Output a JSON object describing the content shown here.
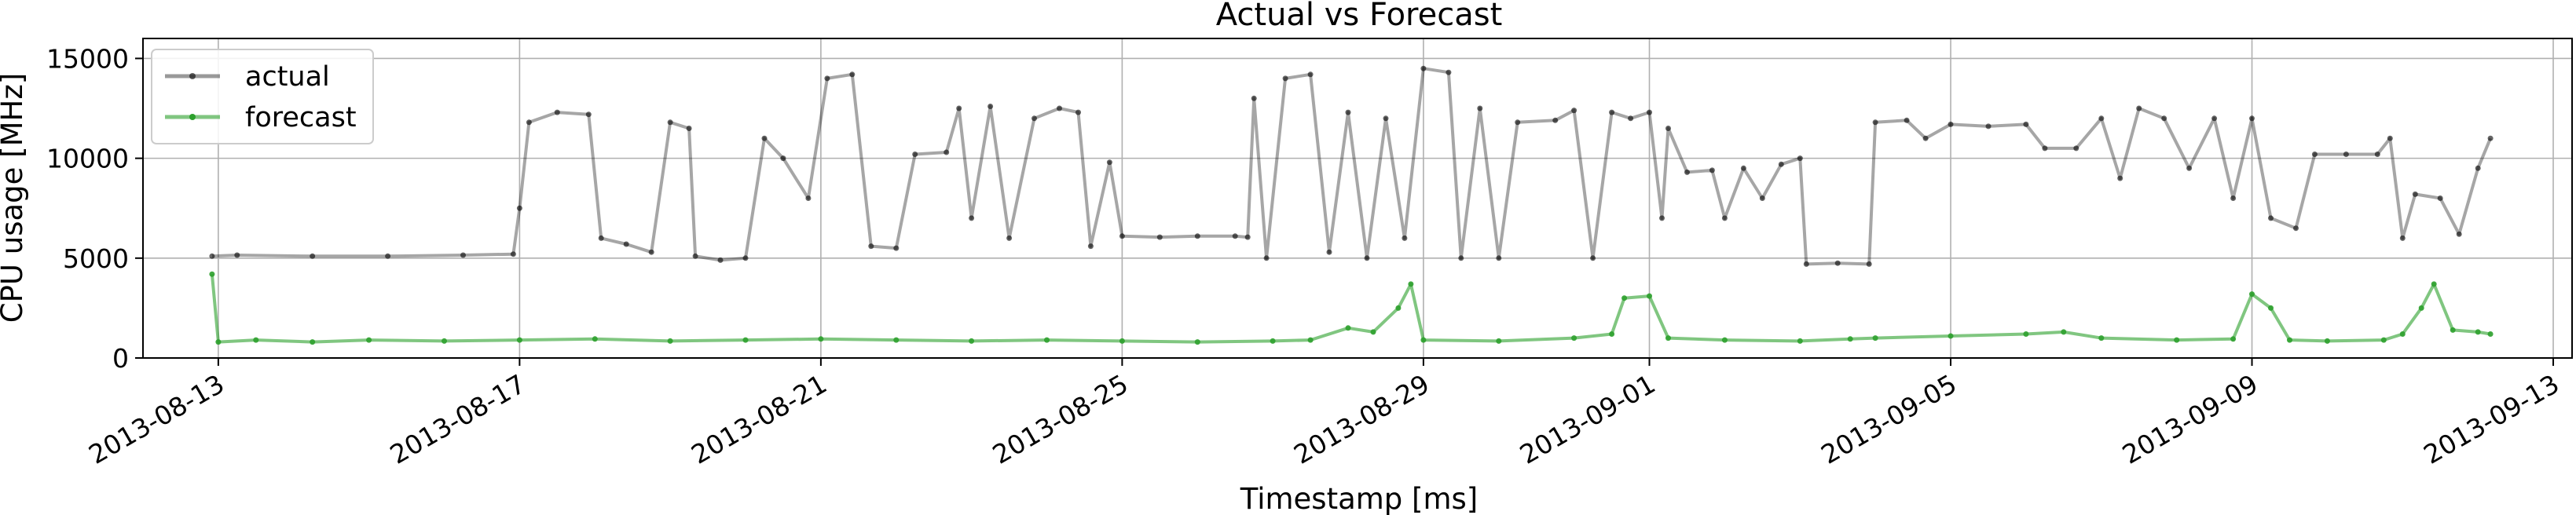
{
  "chart_data": {
    "type": "line",
    "title": "Actual vs Forecast",
    "xlabel": "Timestamp [ms]",
    "ylabel": "CPU usage [MHz]",
    "ylim": [
      0,
      16000
    ],
    "xlim": [
      "2013-08-12T00:00",
      "2013-09-13T06:00"
    ],
    "grid": true,
    "legend_position": "top-left",
    "y_ticks": [
      0,
      5000,
      10000,
      15000
    ],
    "y_tick_labels": [
      "0",
      "5000",
      "10000",
      "15000"
    ],
    "x_ticks": [
      "2013-08-13",
      "2013-08-17",
      "2013-08-21",
      "2013-08-25",
      "2013-08-29",
      "2013-09-01",
      "2013-09-05",
      "2013-09-09",
      "2013-09-13"
    ],
    "x_tick_labels": [
      "2013-08-13",
      "2013-08-17",
      "2013-08-21",
      "2013-08-25",
      "2013-08-29",
      "2013-09-01",
      "2013-09-05",
      "2013-09-09",
      "2013-09-13"
    ],
    "series": [
      {
        "name": "actual",
        "color": "#000000",
        "points": [
          [
            "2013-08-12T22:00",
            5100
          ],
          [
            "2013-08-13T06:00",
            5150
          ],
          [
            "2013-08-14T06:00",
            5100
          ],
          [
            "2013-08-15T06:00",
            5100
          ],
          [
            "2013-08-16T06:00",
            5150
          ],
          [
            "2013-08-16T22:00",
            5200
          ],
          [
            "2013-08-17T00:00",
            7500
          ],
          [
            "2013-08-17T03:00",
            11800
          ],
          [
            "2013-08-17T12:00",
            12300
          ],
          [
            "2013-08-17T22:00",
            12200
          ],
          [
            "2013-08-18T02:00",
            6000
          ],
          [
            "2013-08-18T10:00",
            5700
          ],
          [
            "2013-08-18T18:00",
            5300
          ],
          [
            "2013-08-19T00:00",
            11800
          ],
          [
            "2013-08-19T06:00",
            11500
          ],
          [
            "2013-08-19T08:00",
            5100
          ],
          [
            "2013-08-19T16:00",
            4900
          ],
          [
            "2013-08-20T00:00",
            5000
          ],
          [
            "2013-08-20T06:00",
            11000
          ],
          [
            "2013-08-20T12:00",
            10000
          ],
          [
            "2013-08-20T20:00",
            8000
          ],
          [
            "2013-08-21T02:00",
            14000
          ],
          [
            "2013-08-21T10:00",
            14200
          ],
          [
            "2013-08-21T16:00",
            5600
          ],
          [
            "2013-08-22T00:00",
            5500
          ],
          [
            "2013-08-22T06:00",
            10200
          ],
          [
            "2013-08-22T16:00",
            10300
          ],
          [
            "2013-08-22T20:00",
            12500
          ],
          [
            "2013-08-23T00:00",
            7000
          ],
          [
            "2013-08-23T06:00",
            12600
          ],
          [
            "2013-08-23T12:00",
            6000
          ],
          [
            "2013-08-23T20:00",
            12000
          ],
          [
            "2013-08-24T04:00",
            12500
          ],
          [
            "2013-08-24T10:00",
            12300
          ],
          [
            "2013-08-24T14:00",
            5600
          ],
          [
            "2013-08-24T20:00",
            9800
          ],
          [
            "2013-08-25T00:00",
            6100
          ],
          [
            "2013-08-25T12:00",
            6050
          ],
          [
            "2013-08-26T00:00",
            6100
          ],
          [
            "2013-08-26T12:00",
            6100
          ],
          [
            "2013-08-26T16:00",
            6050
          ],
          [
            "2013-08-26T18:00",
            13000
          ],
          [
            "2013-08-26T22:00",
            5000
          ],
          [
            "2013-08-27T04:00",
            14000
          ],
          [
            "2013-08-27T12:00",
            14200
          ],
          [
            "2013-08-27T18:00",
            5300
          ],
          [
            "2013-08-28T00:00",
            12300
          ],
          [
            "2013-08-28T06:00",
            5000
          ],
          [
            "2013-08-28T12:00",
            12000
          ],
          [
            "2013-08-28T18:00",
            6000
          ],
          [
            "2013-08-29T00:00",
            14500
          ],
          [
            "2013-08-29T08:00",
            14300
          ],
          [
            "2013-08-29T12:00",
            5000
          ],
          [
            "2013-08-29T18:00",
            12500
          ],
          [
            "2013-08-30T00:00",
            5000
          ],
          [
            "2013-08-30T06:00",
            11800
          ],
          [
            "2013-08-30T18:00",
            11900
          ],
          [
            "2013-08-31T00:00",
            12400
          ],
          [
            "2013-08-31T06:00",
            5000
          ],
          [
            "2013-08-31T12:00",
            12300
          ],
          [
            "2013-08-31T18:00",
            12000
          ],
          [
            "2013-09-01T00:00",
            12300
          ],
          [
            "2013-09-01T04:00",
            7000
          ],
          [
            "2013-09-01T06:00",
            11500
          ],
          [
            "2013-09-01T12:00",
            9300
          ],
          [
            "2013-09-01T20:00",
            9400
          ],
          [
            "2013-09-02T00:00",
            7000
          ],
          [
            "2013-09-02T06:00",
            9500
          ],
          [
            "2013-09-02T12:00",
            8000
          ],
          [
            "2013-09-02T18:00",
            9700
          ],
          [
            "2013-09-03T00:00",
            10000
          ],
          [
            "2013-09-03T02:00",
            4700
          ],
          [
            "2013-09-03T12:00",
            4750
          ],
          [
            "2013-09-03T22:00",
            4700
          ],
          [
            "2013-09-04T00:00",
            11800
          ],
          [
            "2013-09-04T10:00",
            11900
          ],
          [
            "2013-09-04T16:00",
            11000
          ],
          [
            "2013-09-05T00:00",
            11700
          ],
          [
            "2013-09-05T12:00",
            11600
          ],
          [
            "2013-09-06T00:00",
            11700
          ],
          [
            "2013-09-06T06:00",
            10500
          ],
          [
            "2013-09-06T16:00",
            10500
          ],
          [
            "2013-09-07T00:00",
            12000
          ],
          [
            "2013-09-07T06:00",
            9000
          ],
          [
            "2013-09-07T12:00",
            12500
          ],
          [
            "2013-09-07T20:00",
            12000
          ],
          [
            "2013-09-08T04:00",
            9500
          ],
          [
            "2013-09-08T12:00",
            12000
          ],
          [
            "2013-09-08T18:00",
            8000
          ],
          [
            "2013-09-09T00:00",
            12000
          ],
          [
            "2013-09-09T06:00",
            7000
          ],
          [
            "2013-09-09T14:00",
            6500
          ],
          [
            "2013-09-09T20:00",
            10200
          ],
          [
            "2013-09-10T06:00",
            10200
          ],
          [
            "2013-09-10T16:00",
            10200
          ],
          [
            "2013-09-10T20:00",
            11000
          ],
          [
            "2013-09-11T00:00",
            6000
          ],
          [
            "2013-09-11T04:00",
            8200
          ],
          [
            "2013-09-11T12:00",
            8000
          ],
          [
            "2013-09-11T18:00",
            6200
          ],
          [
            "2013-09-12T00:00",
            9500
          ],
          [
            "2013-09-12T04:00",
            11000
          ]
        ]
      },
      {
        "name": "forecast",
        "color": "#2ca02c",
        "points": [
          [
            "2013-08-12T22:00",
            4200
          ],
          [
            "2013-08-13T00:00",
            800
          ],
          [
            "2013-08-13T12:00",
            900
          ],
          [
            "2013-08-14T06:00",
            800
          ],
          [
            "2013-08-15T00:00",
            900
          ],
          [
            "2013-08-16T00:00",
            850
          ],
          [
            "2013-08-17T00:00",
            900
          ],
          [
            "2013-08-18T00:00",
            950
          ],
          [
            "2013-08-19T00:00",
            850
          ],
          [
            "2013-08-20T00:00",
            900
          ],
          [
            "2013-08-21T00:00",
            950
          ],
          [
            "2013-08-22T00:00",
            900
          ],
          [
            "2013-08-23T00:00",
            850
          ],
          [
            "2013-08-24T00:00",
            900
          ],
          [
            "2013-08-25T00:00",
            850
          ],
          [
            "2013-08-26T00:00",
            800
          ],
          [
            "2013-08-27T00:00",
            850
          ],
          [
            "2013-08-27T12:00",
            900
          ],
          [
            "2013-08-28T00:00",
            1500
          ],
          [
            "2013-08-28T08:00",
            1300
          ],
          [
            "2013-08-28T16:00",
            2500
          ],
          [
            "2013-08-28T20:00",
            3700
          ],
          [
            "2013-08-29T00:00",
            900
          ],
          [
            "2013-08-30T00:00",
            850
          ],
          [
            "2013-08-31T00:00",
            1000
          ],
          [
            "2013-08-31T12:00",
            1200
          ],
          [
            "2013-08-31T16:00",
            3000
          ],
          [
            "2013-09-01T00:00",
            3100
          ],
          [
            "2013-09-01T06:00",
            1000
          ],
          [
            "2013-09-02T00:00",
            900
          ],
          [
            "2013-09-03T00:00",
            850
          ],
          [
            "2013-09-03T16:00",
            950
          ],
          [
            "2013-09-04T00:00",
            1000
          ],
          [
            "2013-09-05T00:00",
            1100
          ],
          [
            "2013-09-06T00:00",
            1200
          ],
          [
            "2013-09-06T12:00",
            1300
          ],
          [
            "2013-09-07T00:00",
            1000
          ],
          [
            "2013-09-08T00:00",
            900
          ],
          [
            "2013-09-08T18:00",
            950
          ],
          [
            "2013-09-09T00:00",
            3200
          ],
          [
            "2013-09-09T06:00",
            2500
          ],
          [
            "2013-09-09T12:00",
            900
          ],
          [
            "2013-09-10T00:00",
            850
          ],
          [
            "2013-09-10T18:00",
            900
          ],
          [
            "2013-09-11T00:00",
            1200
          ],
          [
            "2013-09-11T06:00",
            2500
          ],
          [
            "2013-09-11T10:00",
            3700
          ],
          [
            "2013-09-11T16:00",
            1400
          ],
          [
            "2013-09-12T00:00",
            1300
          ],
          [
            "2013-09-12T04:00",
            1200
          ]
        ]
      }
    ]
  }
}
